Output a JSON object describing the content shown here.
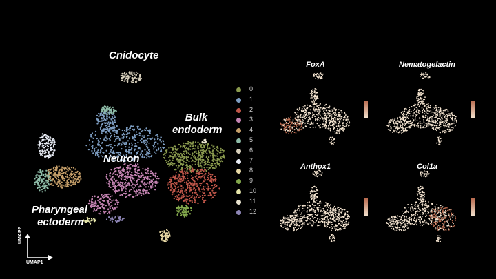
{
  "chart_data": {
    "type": "scatter",
    "main_umap": {
      "clusters": [
        {
          "name": "0",
          "color": "#8a9a4e"
        },
        {
          "name": "1",
          "color": "#7e9ec2"
        },
        {
          "name": "2",
          "color": "#c0574a"
        },
        {
          "name": "3",
          "color": "#c584b3"
        },
        {
          "name": "4",
          "color": "#c7a06a"
        },
        {
          "name": "5",
          "color": "#8ebca8"
        },
        {
          "name": "6",
          "color": "#d8d0bc"
        },
        {
          "name": "7",
          "color": "#e8ecf5"
        },
        {
          "name": "8",
          "color": "#e8d9a6"
        },
        {
          "name": "9",
          "color": "#83a84c"
        },
        {
          "name": "10",
          "color": "#e6e6aa"
        },
        {
          "name": "11",
          "color": "#e9e3cf"
        },
        {
          "name": "12",
          "color": "#8e86b6"
        }
      ],
      "annotations": [
        "Cnidocyte",
        "Bulk endoderm",
        "Neuron",
        "Pharyngeal ectoderm"
      ],
      "xlabel": "UMAP1",
      "ylabel": "UMAP2"
    },
    "feature_plots": [
      {
        "gene": "FoxA",
        "low_color": "#f3e3cf",
        "high_color": "#b86a4e"
      },
      {
        "gene": "Nematogelactin",
        "low_color": "#f3e3cf",
        "high_color": "#b86a4e"
      },
      {
        "gene": "Anthox1",
        "low_color": "#f3e3cf",
        "high_color": "#b86a4e"
      },
      {
        "gene": "Col1a",
        "low_color": "#f3e3cf",
        "high_color": "#b86a4e"
      }
    ]
  },
  "labels": {
    "cnidocyte": "Cnidocyte",
    "bulk": "Bulk",
    "endoderm": "endoderm",
    "neuron": "Neuron",
    "pharyngeal": "Pharyngeal",
    "ectoderm": "ectoderm",
    "umap1": "UMAP1",
    "umap2": "UMAP2"
  }
}
